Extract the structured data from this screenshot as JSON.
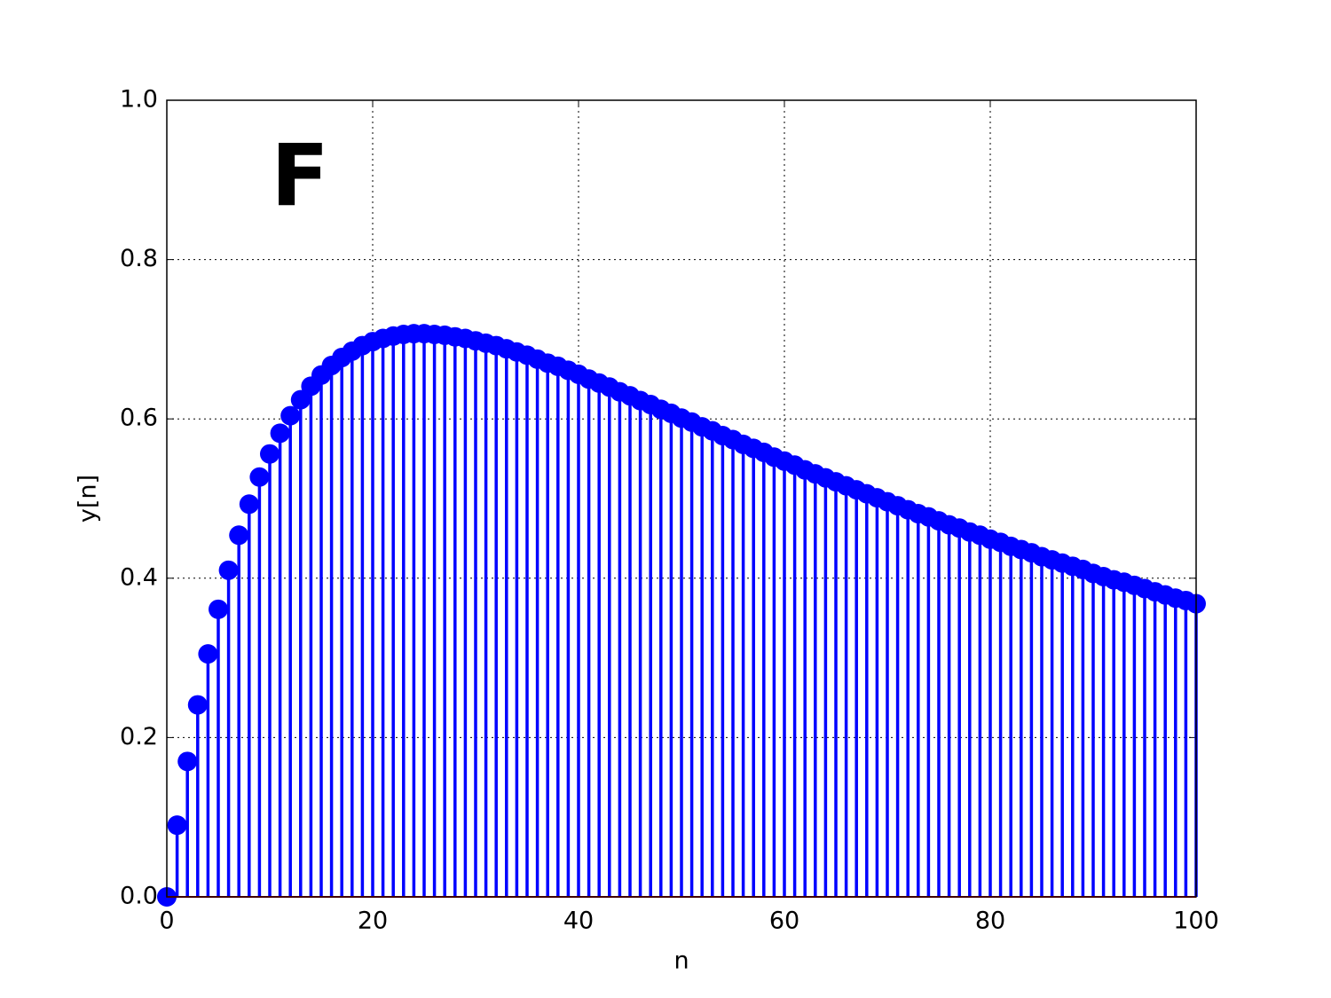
{
  "chart_data": {
    "type": "stem",
    "annotation": "F",
    "xlabel": "n",
    "ylabel": "y[n]",
    "color": "#0000ff",
    "x": [
      0,
      1,
      2,
      3,
      4,
      5,
      6,
      7,
      8,
      9,
      10,
      11,
      12,
      13,
      14,
      15,
      16,
      17,
      18,
      19,
      20,
      21,
      22,
      23,
      24,
      25,
      26,
      27,
      28,
      29,
      30,
      31,
      32,
      33,
      34,
      35,
      36,
      37,
      38,
      39,
      40,
      41,
      42,
      43,
      44,
      45,
      46,
      47,
      48,
      49,
      50,
      51,
      52,
      53,
      54,
      55,
      56,
      57,
      58,
      59,
      60,
      61,
      62,
      63,
      64,
      65,
      66,
      67,
      68,
      69,
      70,
      71,
      72,
      73,
      74,
      75,
      76,
      77,
      78,
      79,
      80,
      81,
      82,
      83,
      84,
      85,
      86,
      87,
      88,
      89,
      90,
      91,
      92,
      93,
      94,
      95,
      96,
      97,
      98,
      99,
      100
    ],
    "values": [
      0,
      0.09,
      0.17,
      0.241,
      0.305,
      0.361,
      0.41,
      0.454,
      0.493,
      0.527,
      0.556,
      0.582,
      0.604,
      0.624,
      0.641,
      0.655,
      0.667,
      0.677,
      0.685,
      0.692,
      0.697,
      0.701,
      0.704,
      0.706,
      0.707,
      0.707,
      0.706,
      0.705,
      0.703,
      0.701,
      0.698,
      0.695,
      0.692,
      0.688,
      0.684,
      0.68,
      0.675,
      0.67,
      0.666,
      0.661,
      0.656,
      0.65,
      0.645,
      0.64,
      0.634,
      0.629,
      0.623,
      0.618,
      0.612,
      0.607,
      0.601,
      0.596,
      0.59,
      0.585,
      0.579,
      0.574,
      0.568,
      0.563,
      0.558,
      0.552,
      0.547,
      0.542,
      0.536,
      0.531,
      0.526,
      0.521,
      0.516,
      0.511,
      0.506,
      0.501,
      0.496,
      0.491,
      0.486,
      0.481,
      0.477,
      0.472,
      0.467,
      0.463,
      0.458,
      0.454,
      0.449,
      0.445,
      0.44,
      0.436,
      0.432,
      0.427,
      0.423,
      0.419,
      0.415,
      0.411,
      0.406,
      0.402,
      0.398,
      0.395,
      0.391,
      0.387,
      0.383,
      0.379,
      0.375,
      0.372,
      0.368
    ],
    "xlim": [
      0,
      100
    ],
    "xticks": [
      0,
      20,
      40,
      60,
      80,
      100
    ],
    "ylim": [
      0,
      1
    ],
    "yticks": [
      {
        "value": 0,
        "label": "0.0"
      },
      {
        "value": 0.2,
        "label": "0.2"
      },
      {
        "value": 0.4,
        "label": "0.4"
      },
      {
        "value": 0.6,
        "label": "0.6"
      },
      {
        "value": 0.8,
        "label": "0.8"
      },
      {
        "value": 1,
        "label": "1.0"
      }
    ],
    "grid": true
  }
}
